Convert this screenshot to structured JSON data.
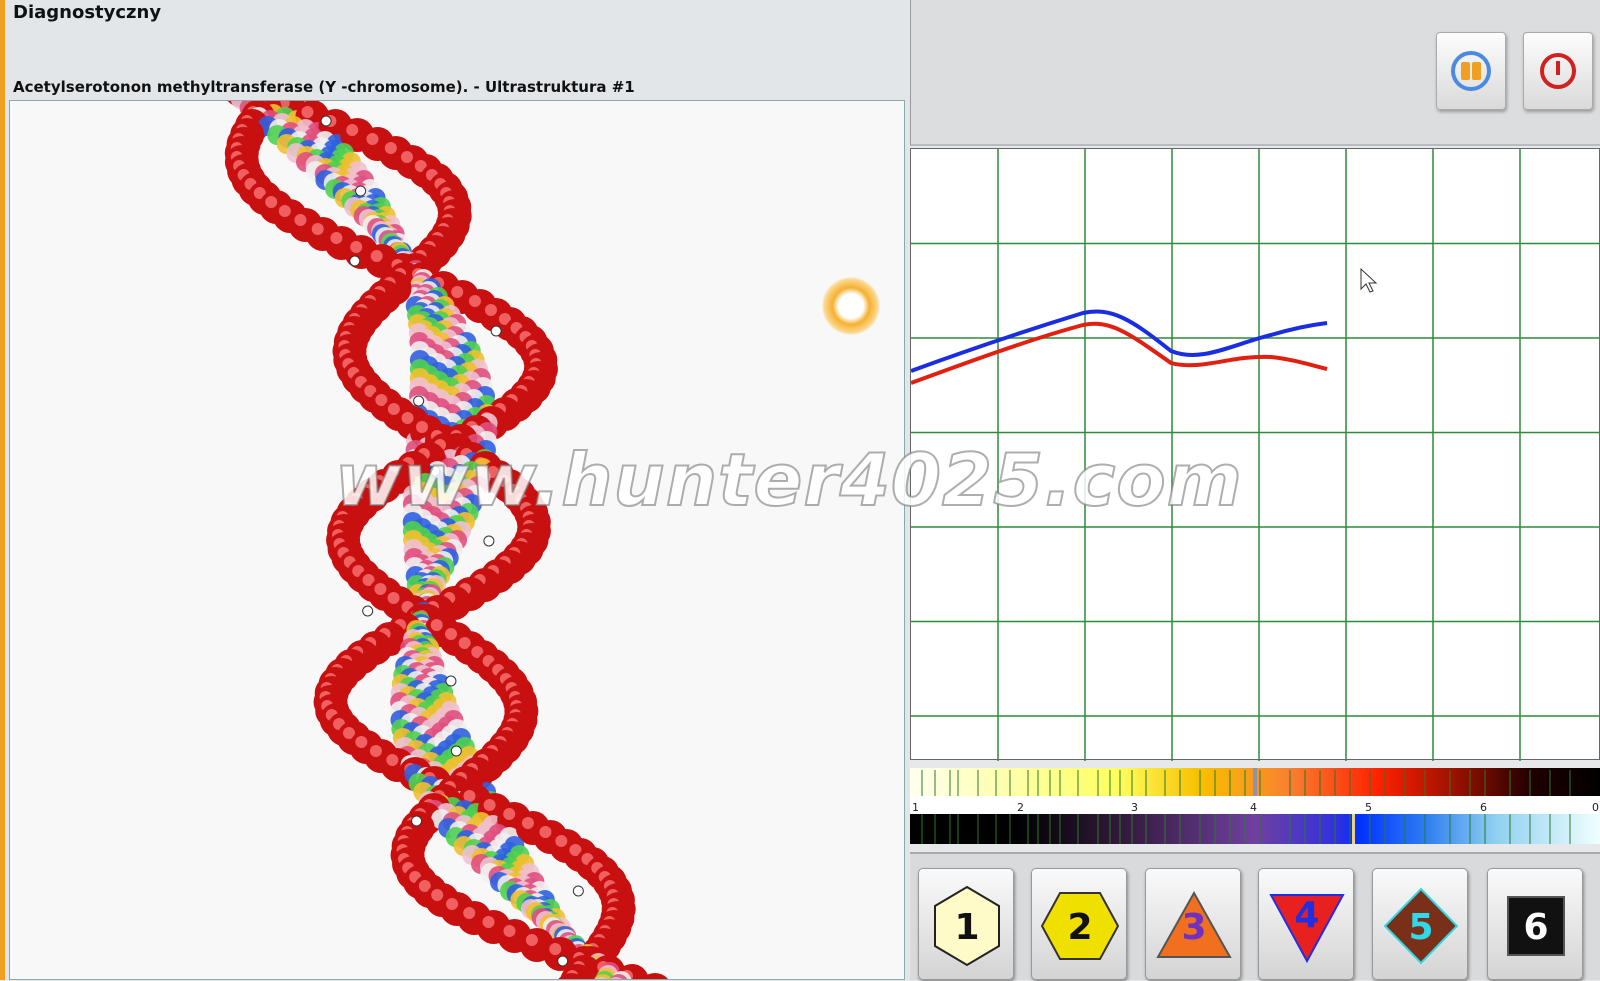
{
  "window": {
    "title": "Diagnostyczny"
  },
  "viewer": {
    "subtitle": "Acetylserotonon methyltransferase (Y -chromosome). - Ultrastruktura #1"
  },
  "toolbar": {
    "buttons": [
      {
        "name": "pause",
        "icon": "pause-icon"
      },
      {
        "name": "power",
        "icon": "power-icon"
      }
    ]
  },
  "graph": {
    "series_colors": {
      "upper": "#1a2ee0",
      "lower": "#e02010"
    },
    "grid_color": "#2e8b3a"
  },
  "spectrum": {
    "tick_labels": [
      "1",
      "2",
      "3",
      "4",
      "5",
      "6",
      "0"
    ]
  },
  "level_buttons": [
    {
      "label": "1",
      "shape": "hexagon",
      "fill": "#fffbc8",
      "text_color": "#111"
    },
    {
      "label": "2",
      "shape": "hexagon",
      "fill": "#f0e000",
      "text_color": "#111"
    },
    {
      "label": "3",
      "shape": "triangle",
      "fill": "#f07020",
      "text_color": "#7030c0"
    },
    {
      "label": "4",
      "shape": "inverted-triangle",
      "fill": "#e82020",
      "text_color": "#2030e0"
    },
    {
      "label": "5",
      "shape": "diamond",
      "fill": "#7a3018",
      "text_color": "#30d8e8"
    },
    {
      "label": "6",
      "shape": "square",
      "fill": "#111111",
      "text_color": "#ffffff"
    }
  ],
  "watermark": "www.hunter4025.com"
}
